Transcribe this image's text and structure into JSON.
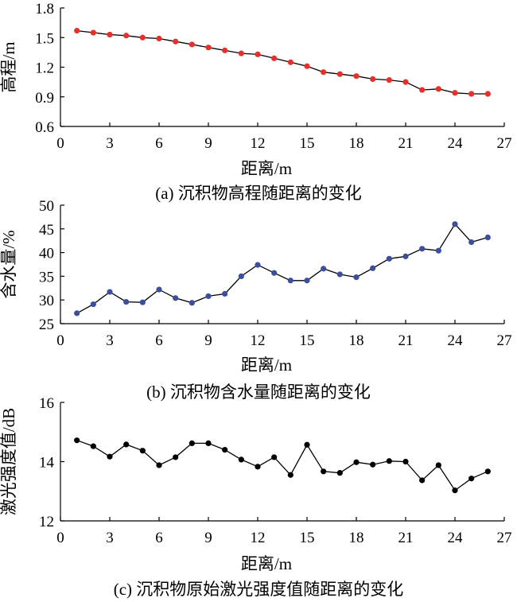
{
  "chart_data": [
    {
      "type": "line",
      "caption": "(a) 沉积物高程随距离的变化",
      "xlabel": "距离/m",
      "ylabel": "高程/m",
      "xlim": [
        0,
        27
      ],
      "ylim": [
        0.6,
        1.8
      ],
      "xticks": [
        "0",
        "3",
        "6",
        "9",
        "12",
        "15",
        "18",
        "21",
        "24",
        "27"
      ],
      "yticks": [
        "0.6",
        "0.9",
        "1.2",
        "1.5",
        "1.8"
      ],
      "marker_color": "#e8302a",
      "x": [
        1,
        2,
        3,
        4,
        5,
        6,
        7,
        8,
        9,
        10,
        11,
        12,
        13,
        14,
        15,
        16,
        17,
        18,
        19,
        20,
        21,
        22,
        23,
        24,
        25,
        26
      ],
      "values": [
        1.57,
        1.55,
        1.53,
        1.52,
        1.5,
        1.49,
        1.46,
        1.43,
        1.4,
        1.37,
        1.34,
        1.33,
        1.29,
        1.25,
        1.21,
        1.15,
        1.13,
        1.11,
        1.08,
        1.07,
        1.05,
        0.97,
        0.98,
        0.94,
        0.93,
        0.93
      ]
    },
    {
      "type": "line",
      "caption": "(b) 沉积物含水量随距离的变化",
      "xlabel": "距离/m",
      "ylabel": "含水量/%",
      "xlim": [
        0,
        27
      ],
      "ylim": [
        25,
        50
      ],
      "xticks": [
        "0",
        "3",
        "6",
        "9",
        "12",
        "15",
        "18",
        "21",
        "24",
        "27"
      ],
      "yticks": [
        "25",
        "30",
        "35",
        "40",
        "45",
        "50"
      ],
      "marker_color": "#3d4f9c",
      "x": [
        1,
        2,
        3,
        4,
        5,
        6,
        7,
        8,
        9,
        10,
        11,
        12,
        13,
        14,
        15,
        16,
        17,
        18,
        19,
        20,
        21,
        22,
        23,
        24,
        25,
        26
      ],
      "values": [
        27.2,
        29.1,
        31.7,
        29.6,
        29.5,
        32.2,
        30.4,
        29.4,
        30.8,
        31.3,
        35.0,
        37.4,
        35.7,
        34.1,
        34.1,
        36.6,
        35.4,
        34.8,
        36.7,
        38.7,
        39.2,
        40.8,
        40.4,
        46.0,
        42.2,
        43.2
      ]
    },
    {
      "type": "line",
      "caption": "(c) 沉积物原始激光强度值随距离的变化",
      "xlabel": "距离/m",
      "ylabel": "激光强度值/dB",
      "xlim": [
        0,
        27
      ],
      "ylim": [
        12,
        16
      ],
      "xticks": [
        "0",
        "3",
        "6",
        "9",
        "12",
        "15",
        "18",
        "21",
        "24",
        "27"
      ],
      "yticks": [
        "12",
        "14",
        "16"
      ],
      "marker_color": "#000000",
      "x": [
        1,
        2,
        3,
        4,
        5,
        6,
        7,
        8,
        9,
        10,
        11,
        12,
        13,
        14,
        15,
        16,
        17,
        18,
        19,
        20,
        21,
        22,
        23,
        24,
        25,
        26
      ],
      "values": [
        14.72,
        14.52,
        14.17,
        14.58,
        14.37,
        13.88,
        14.15,
        14.62,
        14.62,
        14.4,
        14.07,
        13.83,
        14.15,
        13.55,
        14.57,
        13.67,
        13.62,
        13.98,
        13.9,
        14.02,
        14.0,
        13.37,
        13.88,
        13.03,
        13.43,
        13.67
      ]
    }
  ]
}
